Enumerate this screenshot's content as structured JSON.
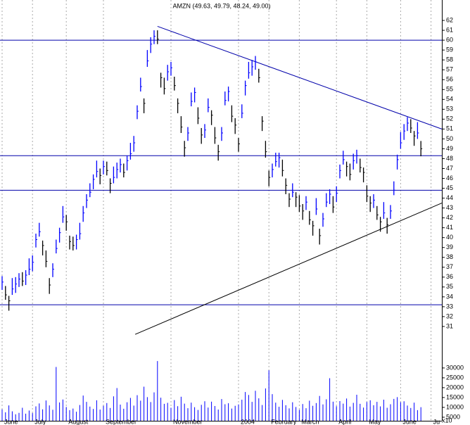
{
  "chart_data": {
    "type": "ohlc",
    "title": "AMZN (49.63, 49.79, 48.24, 49.00)",
    "categories": [
      "June",
      null,
      null,
      null,
      null,
      null,
      null,
      null,
      null,
      "July",
      null,
      null,
      null,
      null,
      null,
      null,
      null,
      null,
      null,
      "August",
      null,
      null,
      null,
      null,
      null,
      null,
      null,
      null,
      null,
      null,
      "September",
      null,
      null,
      null,
      null,
      null,
      null,
      null,
      null,
      null,
      null,
      null,
      null,
      null,
      null,
      null,
      null,
      null,
      null,
      null,
      "November",
      null,
      null,
      null,
      null,
      null,
      null,
      null,
      null,
      null,
      null,
      null,
      null,
      null,
      null,
      null,
      null,
      null,
      null,
      null,
      "2004",
      null,
      null,
      null,
      null,
      null,
      null,
      null,
      null,
      "February",
      null,
      null,
      null,
      null,
      null,
      null,
      null,
      null,
      "March",
      null,
      null,
      null,
      null,
      null,
      null,
      null,
      null,
      null,
      null,
      "April",
      null,
      null,
      null,
      null,
      null,
      null,
      null,
      null,
      "May",
      null,
      null,
      null,
      null,
      null,
      null,
      null,
      null,
      null,
      "June",
      null,
      null,
      null,
      null,
      null,
      null,
      null,
      null,
      "Ju",
      null,
      null
    ],
    "high": [
      36.1,
      35.1,
      34.1,
      35.9,
      36.0,
      36.4,
      36.5,
      36.7,
      37.9,
      38.2,
      40.4,
      41.5,
      39.7,
      38.7,
      35.9,
      37.4,
      39.8,
      41.0,
      43.2,
      42.3,
      40.2,
      40.1,
      40.3,
      41.5,
      43.2,
      44.4,
      45.5,
      46.4,
      47.8,
      47.0,
      47.8,
      47.7,
      46.0,
      47.2,
      47.6,
      48.0,
      47.5,
      48.3,
      49.6,
      50.3,
      53.4,
      56.2,
      54.1,
      59.0,
      60.3,
      61.0,
      61.0,
      56.7,
      56.2,
      57.5,
      57.8,
      56.3,
      54.1,
      52.3,
      49.8,
      51.2,
      54.7,
      55.2,
      53.2,
      51.1,
      51.5,
      54.1,
      52.9,
      51.2,
      49.4,
      51.2,
      54.8,
      55.3,
      53.4,
      52.1,
      50.1,
      53.5,
      55.9,
      57.8,
      58.0,
      58.4,
      57.1,
      52.3,
      49.8,
      46.8,
      47.5,
      48.6,
      48.6,
      47.9,
      46.0,
      44.5,
      45.5,
      44.6,
      44.3,
      43.4,
      44.2,
      42.7,
      41.7,
      44.0,
      40.9,
      42.5,
      44.5,
      44.9,
      44.2,
      45.2,
      47.4,
      48.8,
      47.7,
      47.5,
      48.5,
      48.9,
      48.0,
      47.1,
      45.3,
      44.2,
      44.4,
      43.2,
      42.1,
      43.6,
      42.0,
      43.3,
      45.7,
      48.4,
      50.7,
      51.5,
      52.2,
      52.0,
      50.8,
      51.7,
      49.79,
      null,
      null,
      null,
      null,
      null
    ],
    "low": [
      34.7,
      33.7,
      32.6,
      34.2,
      34.4,
      35.0,
      35.1,
      35.2,
      36.2,
      36.6,
      39.0,
      40.1,
      38.2,
      37.0,
      34.3,
      36.0,
      38.4,
      39.5,
      41.5,
      40.7,
      38.8,
      38.7,
      38.8,
      39.8,
      41.6,
      43.0,
      44.1,
      44.9,
      46.1,
      45.4,
      46.4,
      46.3,
      44.5,
      45.5,
      46.0,
      46.6,
      46.1,
      46.8,
      47.9,
      48.7,
      52.0,
      54.8,
      52.6,
      57.3,
      58.7,
      59.6,
      59.6,
      55.2,
      54.5,
      55.9,
      56.4,
      54.9,
      52.6,
      50.6,
      48.2,
      49.8,
      53.3,
      53.7,
      51.5,
      49.5,
      50.1,
      52.7,
      51.4,
      49.5,
      47.8,
      49.8,
      53.4,
      53.8,
      51.7,
      50.5,
      48.7,
      52.1,
      54.4,
      56.1,
      56.4,
      57.0,
      55.7,
      50.8,
      48.1,
      45.2,
      46.1,
      47.2,
      47.1,
      46.2,
      44.4,
      43.1,
      44.1,
      43.1,
      42.6,
      41.8,
      42.8,
      41.3,
      40.2,
      42.3,
      39.3,
      41.1,
      43.1,
      43.4,
      42.5,
      43.6,
      46.0,
      47.4,
      46.2,
      45.8,
      46.9,
      47.5,
      46.6,
      45.6,
      43.6,
      42.6,
      43.0,
      41.8,
      40.6,
      41.9,
      40.4,
      41.9,
      44.3,
      46.9,
      49.0,
      49.9,
      50.8,
      50.6,
      49.3,
      50.0,
      48.24,
      null,
      null,
      null,
      null,
      null
    ],
    "close": [
      35.5,
      34.2,
      33.6,
      34.8,
      35.3,
      35.8,
      35.6,
      36.2,
      36.8,
      37.5,
      39.8,
      40.6,
      39.2,
      37.6,
      35.2,
      36.8,
      38.9,
      40.5,
      42.1,
      41.6,
      39.6,
      39.2,
      39.8,
      40.4,
      42.5,
      43.8,
      44.6,
      45.9,
      46.7,
      46.3,
      47.2,
      46.8,
      45.5,
      46.1,
      46.9,
      47.4,
      46.6,
      47.8,
      48.5,
      49.6,
      52.8,
      55.3,
      53.6,
      57.9,
      59.6,
      60.4,
      60.1,
      56.2,
      55.1,
      56.8,
      57.2,
      55.4,
      53.6,
      51.2,
      49.1,
      50.6,
      53.8,
      54.7,
      52.1,
      50.4,
      50.9,
      53.2,
      52.4,
      50.1,
      48.7,
      50.6,
      53.9,
      54.8,
      52.3,
      51.4,
      49.5,
      52.6,
      55.4,
      56.7,
      57.3,
      57.8,
      56.2,
      51.8,
      48.7,
      46.1,
      46.9,
      47.7,
      48.1,
      46.8,
      45.3,
      43.9,
      44.6,
      44.1,
      43.2,
      42.7,
      43.6,
      41.8,
      41.2,
      42.9,
      40.2,
      41.9,
      43.6,
      44.4,
      43.1,
      44.5,
      46.8,
      47.9,
      47.2,
      46.4,
      47.8,
      48.3,
      47.1,
      46.6,
      44.2,
      43.5,
      43.8,
      42.3,
      41.6,
      42.5,
      41.3,
      42.7,
      44.8,
      47.9,
      49.6,
      50.8,
      51.6,
      51.1,
      50.3,
      50.6,
      49.0,
      null,
      null,
      null,
      null,
      null
    ],
    "volume": [
      9000,
      7500,
      11000,
      8000,
      6500,
      7200,
      9800,
      6800,
      8400,
      7100,
      10500,
      12000,
      9000,
      13500,
      11000,
      8800,
      30500,
      12500,
      14000,
      10200,
      8600,
      9400,
      7800,
      11200,
      16000,
      12800,
      10400,
      9200,
      13600,
      8900,
      10800,
      12200,
      9700,
      15600,
      19800,
      11400,
      9300,
      12600,
      14800,
      10900,
      16200,
      13400,
      20500,
      15200,
      12700,
      17600,
      33500,
      14900,
      11800,
      12300,
      9800,
      13700,
      10600,
      15400,
      11900,
      9600,
      12400,
      10100,
      8700,
      11300,
      13100,
      9900,
      12900,
      10700,
      8900,
      14200,
      11600,
      12100,
      9400,
      10800,
      11500,
      13900,
      17800,
      16300,
      12800,
      18400,
      14600,
      11200,
      19600,
      28800,
      16700,
      12400,
      10300,
      13800,
      11100,
      9500,
      12600,
      10200,
      8800,
      11700,
      9600,
      13400,
      10800,
      12200,
      15800,
      11500,
      14100,
      24800,
      12900,
      10600,
      13200,
      11900,
      14500,
      10400,
      12300,
      16400,
      11800,
      9900,
      12700,
      13600,
      11100,
      12800,
      10500,
      13900,
      9800,
      11600,
      14300,
      15200,
      12600,
      13100,
      10900,
      9700,
      12400,
      8600,
      10100,
      null,
      null,
      null,
      null,
      null
    ],
    "up_color": "#0000ff",
    "down_color": "#000000",
    "volume_color": "#0000ff",
    "ylim": [
      30,
      63
    ],
    "yticks": [
      31,
      32,
      33,
      34,
      35,
      36,
      37,
      38,
      39,
      40,
      41,
      42,
      43,
      44,
      45,
      46,
      47,
      48,
      49,
      50,
      51,
      52,
      53,
      54,
      55,
      56,
      57,
      58,
      59,
      60,
      61,
      62
    ],
    "volume_ylim": [
      3200,
      33900
    ],
    "volume_yticks": [
      5000,
      10000,
      15000,
      20000,
      25000,
      30000
    ],
    "volume_unit_label": "x10",
    "levels": [
      {
        "value": 60.0,
        "color": "#0000aa"
      },
      {
        "value": 48.3,
        "color": "#0000aa"
      },
      {
        "value": 44.8,
        "color": "#0000aa"
      },
      {
        "value": 33.2,
        "color": "#0000aa"
      }
    ],
    "trend_lines": [
      {
        "x": [
          46.0,
          130.2
        ],
        "y": [
          61.4,
          51.0
        ],
        "color": "#0000aa"
      },
      {
        "x": [
          39.4,
          130.2
        ],
        "y": [
          30.2,
          43.5
        ],
        "color": "#000000"
      }
    ]
  }
}
